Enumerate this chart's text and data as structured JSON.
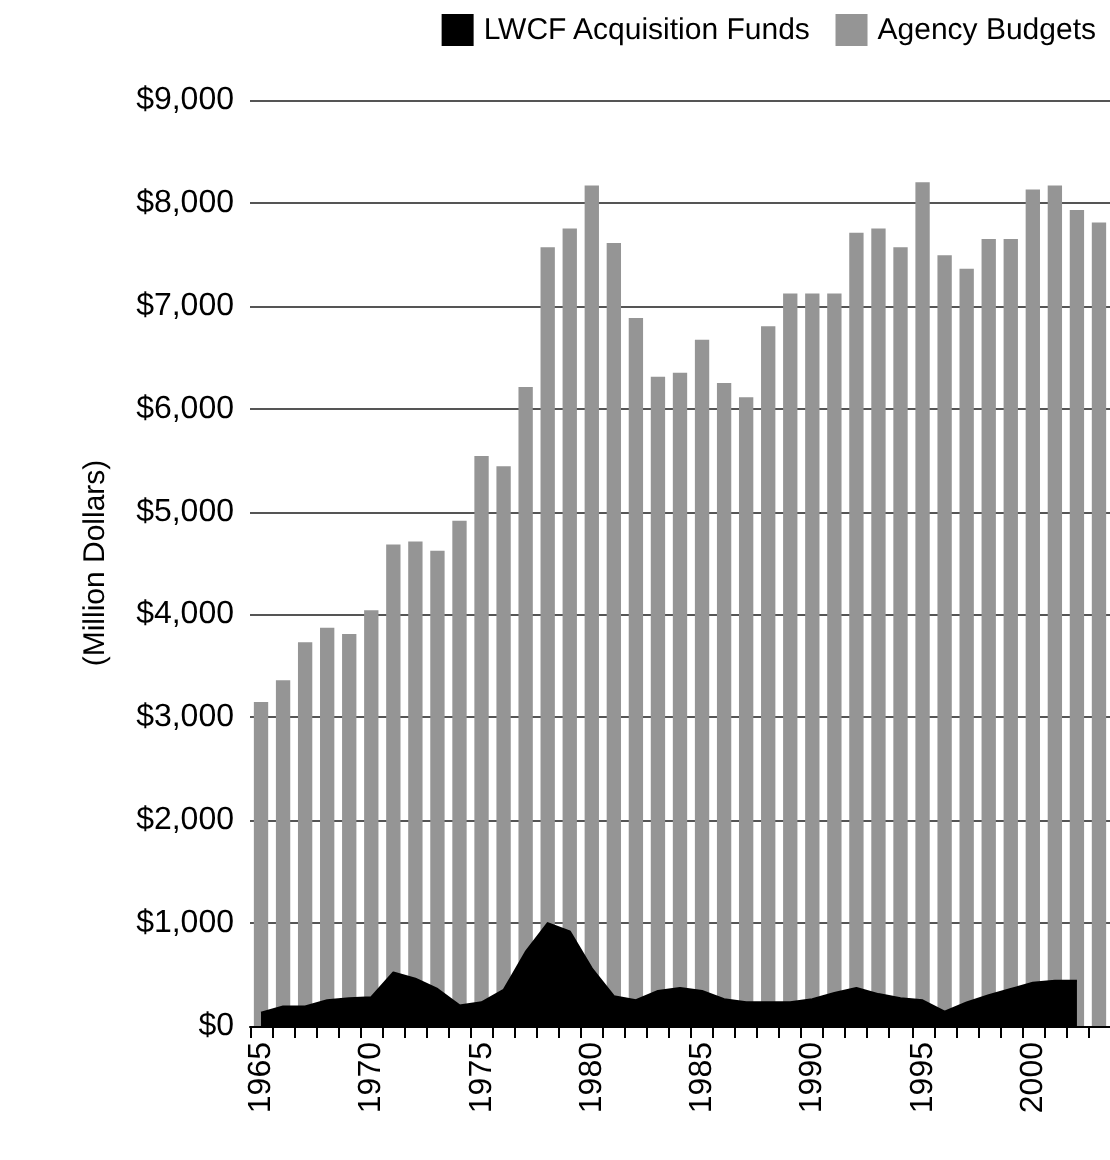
{
  "chart_data": {
    "type": "bar",
    "ylabel": "(Million Dollars)",
    "categories": [
      "1965",
      null,
      null,
      null,
      null,
      "1970",
      null,
      null,
      null,
      null,
      "1975",
      null,
      null,
      null,
      null,
      "1980",
      null,
      null,
      null,
      null,
      "1985",
      null,
      null,
      null,
      null,
      "1990",
      null,
      null,
      null,
      null,
      "1995",
      null,
      null,
      null,
      null,
      "2000",
      null,
      null,
      null
    ],
    "series": [
      {
        "name": "LWCF Acquisition Funds",
        "type": "area",
        "color": "#000000",
        "values": [
          130,
          190,
          190,
          250,
          270,
          280,
          520,
          460,
          360,
          200,
          230,
          350,
          720,
          1000,
          920,
          560,
          290,
          250,
          340,
          370,
          340,
          260,
          230,
          230,
          230,
          260,
          320,
          370,
          310,
          270,
          250,
          140,
          230,
          300,
          360,
          420,
          440,
          440,
          null
        ]
      },
      {
        "name": "Agency Budgets",
        "color": "#959595",
        "values": [
          3150,
          3360,
          3730,
          3870,
          3810,
          4040,
          4680,
          4710,
          4620,
          4910,
          5540,
          5440,
          6210,
          7570,
          7750,
          8170,
          7610,
          6880,
          6310,
          6350,
          6670,
          6250,
          6110,
          6800,
          7120,
          7120,
          7120,
          7710,
          7750,
          7570,
          8200,
          7490,
          7360,
          7650,
          7650,
          8130,
          8170,
          7930,
          7810
        ]
      }
    ],
    "ylim": [
      0,
      9000
    ],
    "yticks": [
      {
        "value": 0,
        "label": "$0"
      },
      {
        "value": 1000,
        "label": "$1,000"
      },
      {
        "value": 2000,
        "label": "$2,000"
      },
      {
        "value": 3000,
        "label": "$3,000"
      },
      {
        "value": 4000,
        "label": "$4,000"
      },
      {
        "value": 5000,
        "label": "$5,000"
      },
      {
        "value": 6000,
        "label": "$6,000"
      },
      {
        "value": 7000,
        "label": "$7,000"
      },
      {
        "value": 8000,
        "label": "$8,000"
      },
      {
        "value": 9000,
        "label": "$9,000"
      }
    ],
    "grid": "y",
    "legend": "top right"
  }
}
